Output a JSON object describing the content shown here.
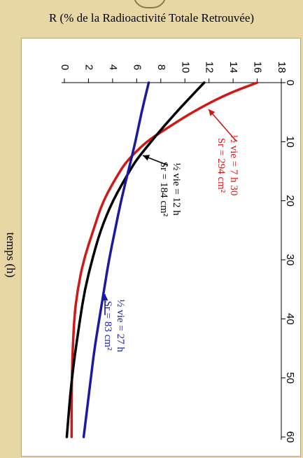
{
  "chart_data": {
    "type": "line",
    "ylabel": "R (% de la Radioactivité Totale Retrouvée)",
    "xlabel": "temps (h)",
    "xlim": [
      0,
      60
    ],
    "ylim": [
      0,
      18
    ],
    "x_ticks": [
      "0",
      "10",
      "20",
      "30",
      "40",
      "50",
      "60"
    ],
    "y_ticks": [
      "0",
      "2",
      "4",
      "6",
      "8",
      "10",
      "12",
      "14",
      "16",
      "18"
    ],
    "grid": false,
    "series": [
      {
        "color": "#d01818",
        "label_line1": "½ vie = 7 h 30",
        "label_line2": "Sr = 294 cm²",
        "x": [
          0,
          2,
          5,
          8,
          10,
          13,
          15,
          20,
          25,
          30,
          35,
          40,
          50,
          60
        ],
        "y": [
          16.0,
          13.4,
          10.6,
          8.3,
          6.8,
          5.3,
          4.6,
          3.2,
          2.4,
          1.6,
          1.1,
          0.8,
          0.6,
          0.6
        ]
      },
      {
        "color": "#000000",
        "label_line1": "½ vie = 12 h",
        "label_line2": "Sr = 184 cm²",
        "x": [
          0,
          3,
          5,
          8,
          10,
          13,
          15,
          20,
          25,
          30,
          35,
          40,
          50,
          60
        ],
        "y": [
          11.6,
          10.2,
          9.3,
          8.0,
          7.2,
          6.0,
          5.4,
          4.0,
          3.0,
          2.3,
          1.7,
          1.3,
          0.6,
          0.2
        ]
      },
      {
        "color": "#1a1aa0",
        "label_line1": "½ vie = 27 h",
        "label_line2": "Sr = 83 cm²",
        "x": [
          0,
          5,
          10,
          15,
          20,
          25,
          30,
          35,
          40,
          45,
          50,
          55,
          60
        ],
        "y": [
          7.0,
          6.4,
          5.9,
          5.3,
          4.7,
          4.2,
          3.7,
          3.3,
          2.9,
          2.5,
          2.2,
          1.9,
          1.6
        ]
      }
    ]
  }
}
